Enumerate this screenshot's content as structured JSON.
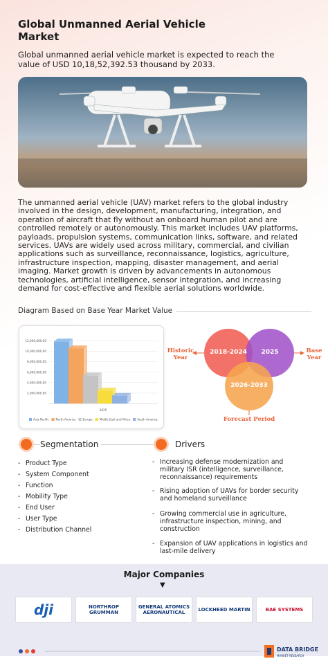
{
  "header": {
    "title": "Global Unmanned Aerial Vehicle Market",
    "subtitle": "Global unmanned aerial vehicle market is expected to reach the value of USD 10,18,52,392.53 thousand by 2033."
  },
  "description": "The unmanned aerial vehicle (UAV) market refers to the global industry involved in the design, development, manufacturing, integration, and operation of aircraft that fly without an onboard human pilot and are controlled remotely or autonomously. This market includes UAV platforms, payloads, propulsion systems, communication links, software, and related services. UAVs are widely used across military, commercial, and civilian applications such as surveillance, reconnaissance, logistics, agriculture, infrastructure inspection, mapping, disaster management, and aerial imaging. Market growth is driven by advancements in autonomous technologies, artificial intelligence, sensor integration, and increasing demand for cost-effective and flexible aerial solutions worldwide.",
  "diagram": {
    "title": "Diagram Based on Base Year Market Value",
    "chart_data": {
      "type": "bar",
      "categories": [
        "2025"
      ],
      "series": [
        {
          "name": "Asia-Pacific",
          "color": "#7fb2e5",
          "values": [
            11900000
          ]
        },
        {
          "name": "North America",
          "color": "#f5a45d",
          "values": [
            10600000
          ]
        },
        {
          "name": "Europe",
          "color": "#c4c4c4",
          "values": [
            5400000
          ]
        },
        {
          "name": "Middle East and Africa",
          "color": "#f7dc3c",
          "values": [
            2500000
          ]
        },
        {
          "name": "South America",
          "color": "#8fb0e0",
          "values": [
            1500000
          ]
        }
      ],
      "ylim": [
        0,
        13000000
      ],
      "yticks": [
        {
          "value": 2000000,
          "label": "2,000,000.00"
        },
        {
          "value": 4000000,
          "label": "4,000,000.00"
        },
        {
          "value": 6000000,
          "label": "6,000,000.00"
        },
        {
          "value": 8000000,
          "label": "8,000,000.00"
        },
        {
          "value": 10000000,
          "label": "10,000,000.00"
        },
        {
          "value": 12000000,
          "label": "12,000,000.00"
        }
      ],
      "grid": true
    },
    "timeline": {
      "historic_label": "Historic Year",
      "historic_range": "2018-2024",
      "base_label": "Base Year",
      "base_range": "2025",
      "forecast_label": "Forecast Period",
      "forecast_range": "2026-2033"
    }
  },
  "segmentation": {
    "title": "Segmentation",
    "items": [
      "Product Type",
      "System Component",
      "Function",
      "Mobility Type",
      "End User",
      "User Type",
      "Distribution Channel"
    ]
  },
  "drivers": {
    "title": "Drivers",
    "items": [
      "Increasing defense modernization and military ISR (intelligence, surveillance, reconnaissance) requirements",
      "Rising adoption of UAVs for border security and homeland surveillance",
      "Growing commercial use in agriculture, infrastructure inspection, mining, and construction",
      "Expansion of UAV applications in logistics and last-mile delivery"
    ]
  },
  "companies": {
    "title": "Major Companies",
    "items": [
      "dji",
      "NORTHROP GRUMMAN",
      "GENERAL ATOMICS AERONAUTICAL",
      "LOCKHEED MARTIN",
      "BAE SYSTEMS"
    ]
  },
  "footer": {
    "brand": "DATA BRIDGE",
    "tagline": "MARKET RESEARCH"
  }
}
